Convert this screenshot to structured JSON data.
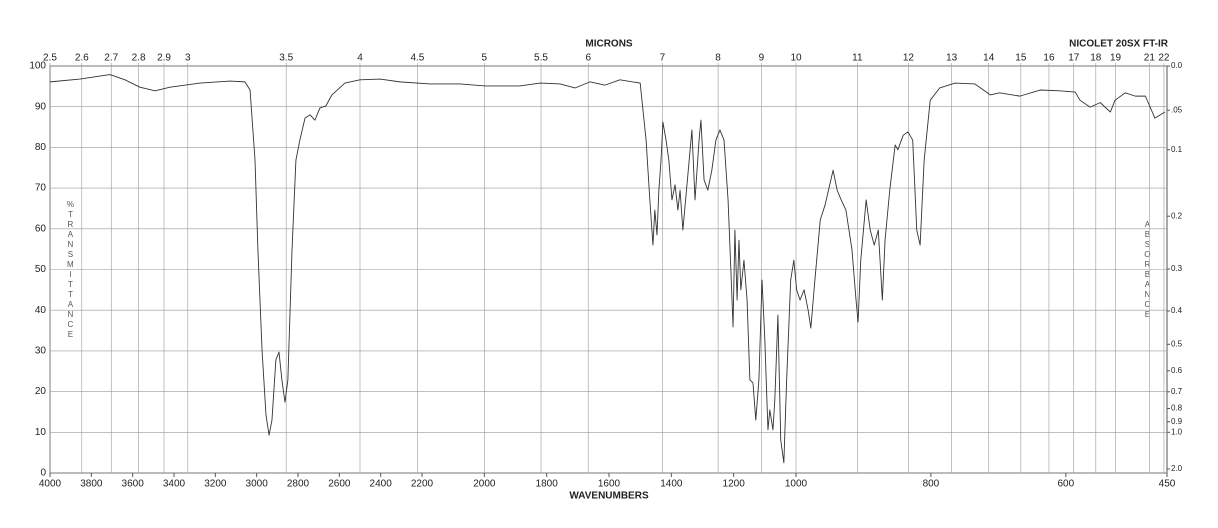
{
  "chart_data": {
    "type": "line",
    "title": "NICOLET 20SX FT-IR",
    "x_label": "WAVENUMBERS",
    "x2_label": "MICRONS",
    "y_label": "%TRANSMITTANCE",
    "y2_label": "ABSORBANCE",
    "xlim": [
      4000,
      450
    ],
    "x_breaks": [
      2200,
      1000
    ],
    "xticks": [
      4000,
      3800,
      3600,
      3400,
      3200,
      3000,
      2800,
      2600,
      2400,
      2200,
      2000,
      1800,
      1600,
      1400,
      1200,
      1000,
      800,
      600,
      450
    ],
    "x2_scale": "reciprocal",
    "x2ticks": [
      2.5,
      2.6,
      2.7,
      2.8,
      2.9,
      3,
      3.5,
      4,
      4.5,
      5,
      5.5,
      6,
      7,
      8,
      9,
      10,
      11,
      12,
      13,
      14,
      15,
      16,
      17,
      18,
      19,
      21,
      22
    ],
    "ylim": [
      0,
      100
    ],
    "yticks": [
      0,
      10,
      20,
      30,
      40,
      50,
      60,
      70,
      80,
      90,
      100
    ],
    "y2_scale": "absorbance",
    "y2ticks": [
      {
        "value": 0,
        "label": "0.0"
      },
      {
        "value": 0.05,
        "label": ".05"
      },
      0.1,
      0.2,
      0.3,
      0.4,
      0.5,
      0.6,
      0.7,
      0.8,
      0.9,
      {
        "value": 1,
        "label": "1.0"
      },
      {
        "value": 2,
        "label": "2.0"
      }
    ],
    "grid": true,
    "color": "#333333",
    "x": [
      4000,
      3855,
      3710,
      3637,
      3565,
      3492,
      3419,
      3274,
      3129,
      3057,
      3032,
      3008,
      2994,
      2974,
      2955,
      2940,
      2926,
      2907,
      2892,
      2878,
      2863,
      2849,
      2829,
      2810,
      2791,
      2766,
      2742,
      2718,
      2694,
      2665,
      2636,
      2573,
      2500,
      2403,
      2307,
      2174,
      2078,
      1998,
      1886,
      1821,
      1757,
      1709,
      1661,
      1613,
      1565,
      1500,
      1481,
      1469,
      1459,
      1453,
      1446,
      1440,
      1433,
      1427,
      1417,
      1408,
      1398,
      1388,
      1379,
      1372,
      1363,
      1347,
      1334,
      1324,
      1311,
      1305,
      1295,
      1283,
      1270,
      1257,
      1244,
      1231,
      1218,
      1209,
      1202,
      1196,
      1189,
      1183,
      1177,
      1167,
      1157,
      1148,
      1138,
      1129,
      1119,
      1109,
      1100,
      1090,
      1084,
      1074,
      1068,
      1058,
      1049,
      1039,
      1030,
      1017,
      1007,
      999,
      994,
      988,
      982,
      978,
      972,
      964,
      957,
      950,
      945,
      939,
      933,
      926,
      917,
      911,
      908,
      904,
      896,
      890,
      884,
      878,
      872,
      868,
      861,
      853,
      849,
      841,
      834,
      827,
      821,
      816,
      810,
      801,
      787,
      764,
      735,
      712,
      698,
      668,
      638,
      609,
      586,
      579,
      564,
      549,
      534,
      527,
      512,
      497,
      482,
      468,
      453
    ],
    "values": [
      96.1,
      96.8,
      97.9,
      96.6,
      94.8,
      93.9,
      94.8,
      95.8,
      96.3,
      96.1,
      94.1,
      76.9,
      54.8,
      30.2,
      14.3,
      9.3,
      13.0,
      27.8,
      29.7,
      22.9,
      17.4,
      22.9,
      54.8,
      76.9,
      81.8,
      87.2,
      88.0,
      86.7,
      89.7,
      90.2,
      92.9,
      95.8,
      96.6,
      96.8,
      96.1,
      95.6,
      95.6,
      95.1,
      95.1,
      95.8,
      95.6,
      94.6,
      96.1,
      95.3,
      96.6,
      95.8,
      81.8,
      67.1,
      56.0,
      64.6,
      58.5,
      69.5,
      76.9,
      86.2,
      81.8,
      76.9,
      67.1,
      70.8,
      64.6,
      69.5,
      59.7,
      73.2,
      84.3,
      67.1,
      81.8,
      86.7,
      72.0,
      69.5,
      74.4,
      81.8,
      84.3,
      81.8,
      67.1,
      49.9,
      35.9,
      59.7,
      42.5,
      57.2,
      45.0,
      52.3,
      42.5,
      22.9,
      22.1,
      13.0,
      22.9,
      47.4,
      32.7,
      10.6,
      15.5,
      10.6,
      17.9,
      38.8,
      8.1,
      2.5,
      22.9,
      47.4,
      52.3,
      45.0,
      42.5,
      45.0,
      40.0,
      35.6,
      47.4,
      62.2,
      65.8,
      70.8,
      74.4,
      69.5,
      67.1,
      64.6,
      54.8,
      42.5,
      37.1,
      52.3,
      67.1,
      59.7,
      56.0,
      59.7,
      42.5,
      57.2,
      69.5,
      80.6,
      79.4,
      83.0,
      83.8,
      81.8,
      59.7,
      56.0,
      76.9,
      91.6,
      94.6,
      95.8,
      95.6,
      92.9,
      93.4,
      92.6,
      94.1,
      93.9,
      93.6,
      91.6,
      89.9,
      91.0,
      88.7,
      91.6,
      93.4,
      92.6,
      92.6,
      87.2,
      88.7
    ]
  }
}
